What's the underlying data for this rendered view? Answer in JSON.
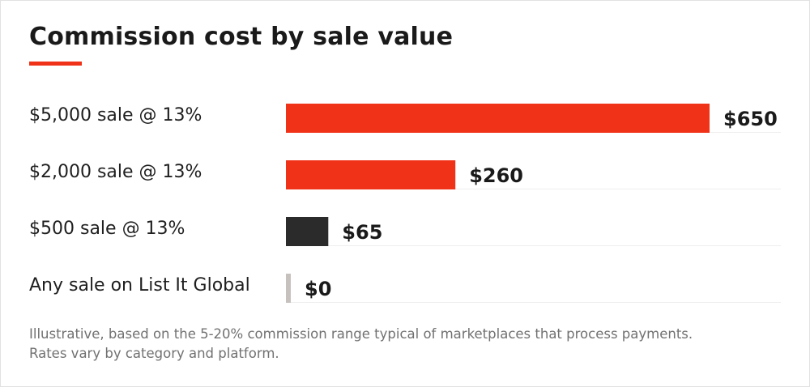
{
  "colors": {
    "accent": "#f03219",
    "dark_bar": "#2b2b2b",
    "zero_bar": "#c7c1bd",
    "track": "#eeeeee"
  },
  "chart_data": {
    "type": "bar",
    "orientation": "horizontal",
    "title": "Commission cost by sale value",
    "categories": [
      "$5,000 sale @ 13%",
      "$2,000 sale @ 13%",
      "$500 sale @ 13%",
      "Any sale on List It Global"
    ],
    "values": [
      650,
      260,
      65,
      0
    ],
    "value_labels": [
      "$650",
      "$260",
      "$65",
      "$0"
    ],
    "bar_colors": [
      "#f03219",
      "#f03219",
      "#2b2b2b",
      "#c7c1bd"
    ],
    "xlim": [
      0,
      650
    ],
    "xlabel": "",
    "ylabel": "",
    "grid": false,
    "legend": "none"
  },
  "footnote": {
    "line1": "Illustrative, based on the 5-20% commission range typical of marketplaces that process payments.",
    "line2": "Rates vary by category and platform."
  }
}
